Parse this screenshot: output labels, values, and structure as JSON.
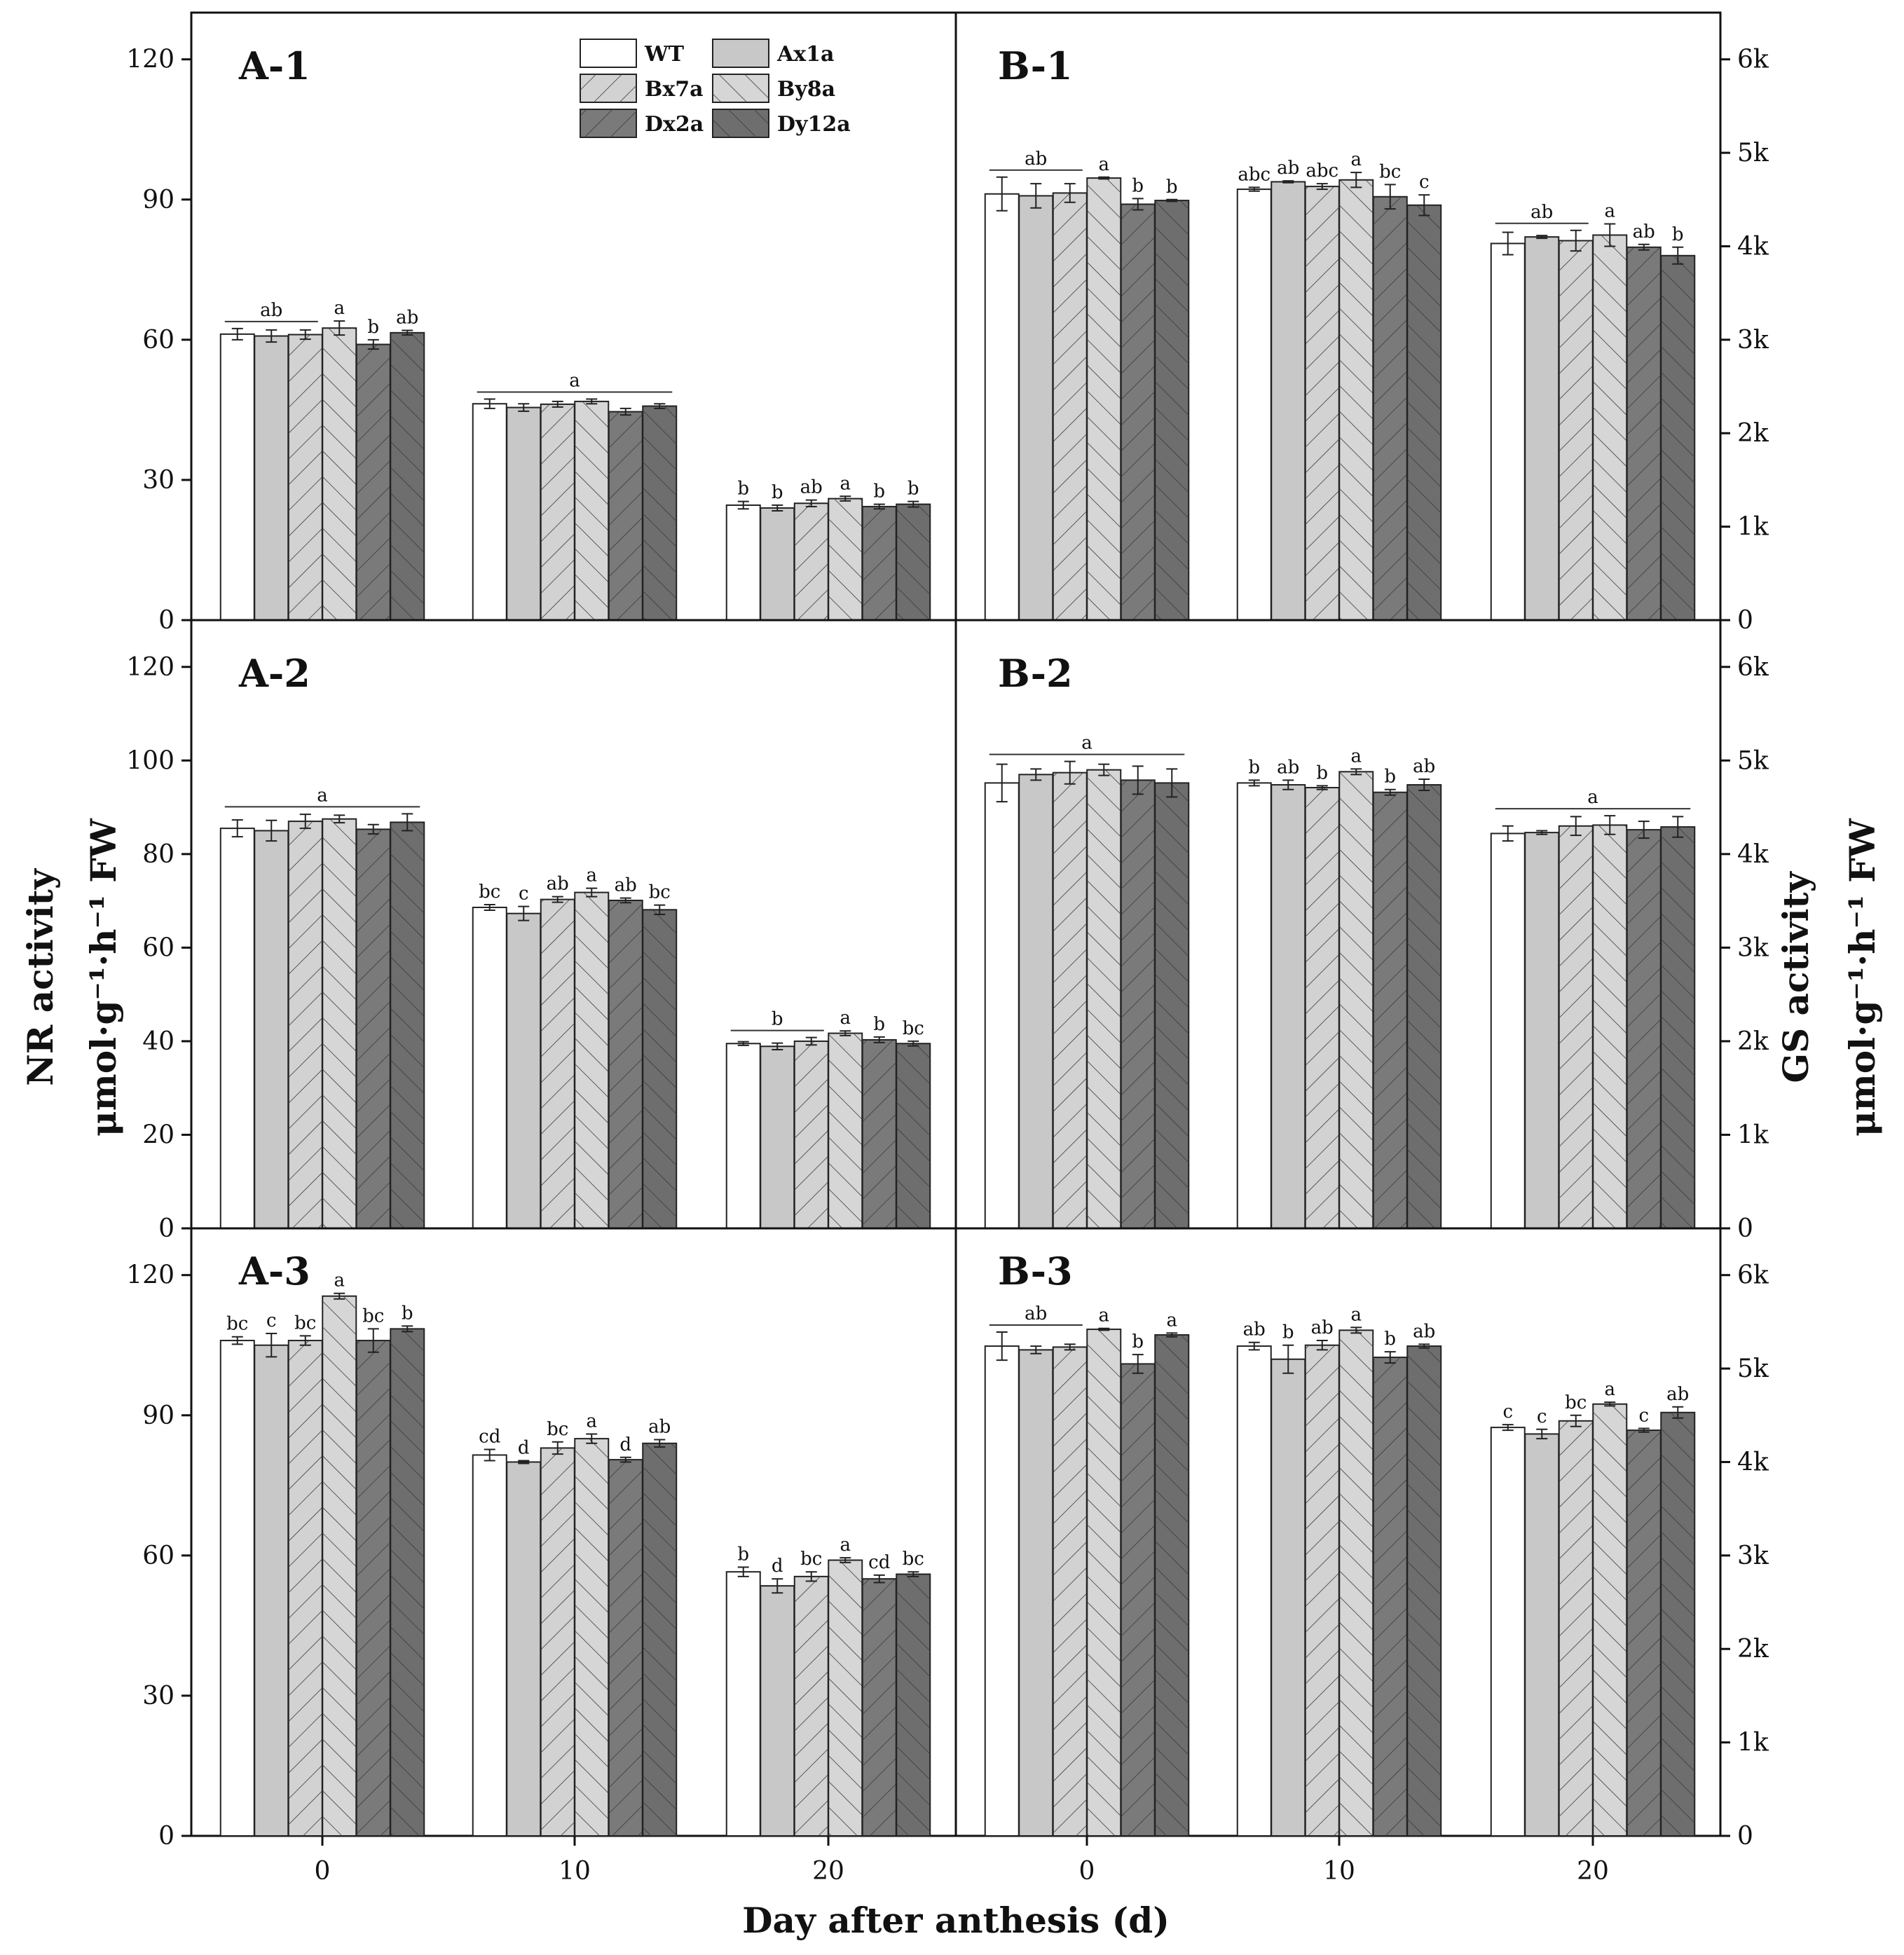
{
  "figure": {
    "x_axis_title": "Day after anthesis (d)",
    "left_axis_title_line1": "NR activity",
    "left_axis_title_line2": "μmol·g⁻¹·h⁻¹ FW",
    "right_axis_title_line1": "GS activity",
    "right_axis_title_line2": "μmol·g⁻¹·h⁻¹ FW"
  },
  "legend": {
    "placement": "top of panel A-1",
    "entries": [
      {
        "name": "WT",
        "fill": "#ffffff",
        "hatch": "none"
      },
      {
        "name": "Ax1a",
        "fill": "#c8c8c8",
        "hatch": "none"
      },
      {
        "name": "Bx7a",
        "fill": "#d2d2d2",
        "hatch": "forward"
      },
      {
        "name": "By8a",
        "fill": "#d6d6d6",
        "hatch": "back"
      },
      {
        "name": "Dx2a",
        "fill": "#7a7a7a",
        "hatch": "forward"
      },
      {
        "name": "Dy12a",
        "fill": "#6e6e6e",
        "hatch": "back"
      }
    ]
  },
  "chart_data": [
    {
      "type": "bar",
      "label": "A-1",
      "categories": [
        "0",
        "10",
        "20"
      ],
      "ylim": [
        0,
        130
      ],
      "yticks": [
        0,
        30,
        60,
        90,
        120
      ],
      "series": [
        {
          "name": "WT",
          "values": [
            61.2,
            46.3,
            24.6
          ],
          "errors": [
            1.2,
            1.0,
            0.8
          ]
        },
        {
          "name": "Ax1a",
          "values": [
            60.8,
            45.5,
            24.0
          ],
          "errors": [
            1.3,
            0.8,
            0.6
          ]
        },
        {
          "name": "Bx7a",
          "values": [
            61.1,
            46.2,
            25.0
          ],
          "errors": [
            1.0,
            0.6,
            0.7
          ]
        },
        {
          "name": "By8a",
          "values": [
            62.5,
            46.8,
            26.0
          ],
          "errors": [
            1.5,
            0.5,
            0.5
          ]
        },
        {
          "name": "Dx2a",
          "values": [
            59.0,
            44.6,
            24.3
          ],
          "errors": [
            1.0,
            0.7,
            0.5
          ]
        },
        {
          "name": "Dy12a",
          "values": [
            61.5,
            45.8,
            24.8
          ],
          "errors": [
            0.5,
            0.5,
            0.6
          ]
        }
      ],
      "letters": [
        [
          "",
          "",
          "",
          "a",
          "b",
          "ab"
        ],
        [
          "",
          "",
          "",
          "",
          "",
          ""
        ],
        [
          "b",
          "b",
          "ab",
          "a",
          "b",
          "b"
        ]
      ],
      "group_letters": [
        {
          "cat": 0,
          "from": 0,
          "to": 2,
          "text": "ab"
        },
        {
          "cat": 1,
          "from": 0,
          "to": 5,
          "text": "a"
        }
      ]
    },
    {
      "type": "bar",
      "label": "A-2",
      "categories": [
        "0",
        "10",
        "20"
      ],
      "ylim": [
        0,
        130
      ],
      "yticks": [
        0,
        20,
        40,
        60,
        80,
        100,
        120
      ],
      "series": [
        {
          "name": "WT",
          "values": [
            85.5,
            68.6,
            39.5
          ],
          "errors": [
            1.8,
            0.6,
            0.4
          ]
        },
        {
          "name": "Ax1a",
          "values": [
            85.0,
            67.3,
            38.9
          ],
          "errors": [
            2.2,
            1.5,
            0.7
          ]
        },
        {
          "name": "Bx7a",
          "values": [
            87.0,
            70.3,
            40.0
          ],
          "errors": [
            1.5,
            0.6,
            0.8
          ]
        },
        {
          "name": "By8a",
          "values": [
            87.5,
            71.8,
            41.7
          ],
          "errors": [
            0.8,
            0.9,
            0.5
          ]
        },
        {
          "name": "Dx2a",
          "values": [
            85.3,
            70.1,
            40.3
          ],
          "errors": [
            1.0,
            0.5,
            0.6
          ]
        },
        {
          "name": "Dy12a",
          "values": [
            86.8,
            68.1,
            39.5
          ],
          "errors": [
            1.8,
            1.0,
            0.5
          ]
        }
      ],
      "letters": [
        [
          "",
          "",
          "",
          "",
          "",
          ""
        ],
        [
          "bc",
          "c",
          "ab",
          "a",
          "ab",
          "bc"
        ],
        [
          "",
          "",
          "",
          "a",
          "b",
          "bc"
        ]
      ],
      "group_letters": [
        {
          "cat": 0,
          "from": 0,
          "to": 5,
          "text": "a"
        },
        {
          "cat": 2,
          "from": 0,
          "to": 2,
          "text": "b"
        }
      ]
    },
    {
      "type": "bar",
      "label": "A-3",
      "categories": [
        "0",
        "10",
        "20"
      ],
      "ylim": [
        0,
        130
      ],
      "yticks": [
        0,
        30,
        60,
        90,
        120
      ],
      "series": [
        {
          "name": "WT",
          "values": [
            106.0,
            81.5,
            56.5
          ],
          "errors": [
            0.8,
            1.2,
            1.0
          ]
        },
        {
          "name": "Ax1a",
          "values": [
            105.0,
            80.0,
            53.5
          ],
          "errors": [
            2.5,
            0.3,
            1.5
          ]
        },
        {
          "name": "Bx7a",
          "values": [
            106.0,
            83.0,
            55.5
          ],
          "errors": [
            1.0,
            1.3,
            1.0
          ]
        },
        {
          "name": "By8a",
          "values": [
            115.5,
            85.0,
            59.0
          ],
          "errors": [
            0.6,
            1.0,
            0.5
          ]
        },
        {
          "name": "Dx2a",
          "values": [
            106.0,
            80.5,
            55.0
          ],
          "errors": [
            2.5,
            0.5,
            0.8
          ]
        },
        {
          "name": "Dy12a",
          "values": [
            108.5,
            84.0,
            56.0
          ],
          "errors": [
            0.6,
            0.8,
            0.5
          ]
        }
      ],
      "letters": [
        [
          "bc",
          "c",
          "bc",
          "a",
          "bc",
          "b"
        ],
        [
          "cd",
          "d",
          "bc",
          "a",
          "d",
          "ab"
        ],
        [
          "b",
          "d",
          "bc",
          "a",
          "cd",
          "bc"
        ]
      ],
      "group_letters": []
    },
    {
      "type": "bar",
      "label": "B-1",
      "categories": [
        "0",
        "10",
        "20"
      ],
      "ylim": [
        0,
        6500
      ],
      "yticks": [
        0,
        1000,
        2000,
        3000,
        4000,
        5000,
        6000
      ],
      "ytick_labels": [
        "0",
        "1k",
        "2k",
        "3k",
        "4k",
        "5k",
        "6k"
      ],
      "series": [
        {
          "name": "WT",
          "values": [
            4560,
            4610,
            4030
          ],
          "errors": [
            180,
            20,
            120
          ]
        },
        {
          "name": "Ax1a",
          "values": [
            4540,
            4690,
            4100
          ],
          "errors": [
            130,
            10,
            15
          ]
        },
        {
          "name": "Bx7a",
          "values": [
            4570,
            4640,
            4060
          ],
          "errors": [
            100,
            30,
            110
          ]
        },
        {
          "name": "By8a",
          "values": [
            4730,
            4710,
            4120
          ],
          "errors": [
            10,
            80,
            120
          ]
        },
        {
          "name": "Dx2a",
          "values": [
            4450,
            4530,
            3990
          ],
          "errors": [
            60,
            130,
            30
          ]
        },
        {
          "name": "Dy12a",
          "values": [
            4490,
            4440,
            3900
          ],
          "errors": [
            10,
            110,
            90
          ]
        }
      ],
      "letters": [
        [
          "",
          "",
          "",
          "a",
          "b",
          "b"
        ],
        [
          "abc",
          "ab",
          "abc",
          "a",
          "bc",
          "c"
        ],
        [
          "",
          "",
          "",
          "a",
          "ab",
          "b"
        ]
      ],
      "group_letters": [
        {
          "cat": 0,
          "from": 0,
          "to": 2,
          "text": "ab"
        },
        {
          "cat": 2,
          "from": 0,
          "to": 2,
          "text": "ab"
        }
      ]
    },
    {
      "type": "bar",
      "label": "B-2",
      "categories": [
        "0",
        "10",
        "20"
      ],
      "ylim": [
        0,
        6500
      ],
      "yticks": [
        0,
        1000,
        2000,
        3000,
        4000,
        5000,
        6000
      ],
      "ytick_labels": [
        "0",
        "1k",
        "2k",
        "3k",
        "4k",
        "5k",
        "6k"
      ],
      "series": [
        {
          "name": "WT",
          "values": [
            4760,
            4760,
            4220
          ],
          "errors": [
            200,
            30,
            80
          ]
        },
        {
          "name": "Ax1a",
          "values": [
            4850,
            4740,
            4230
          ],
          "errors": [
            60,
            50,
            20
          ]
        },
        {
          "name": "Bx7a",
          "values": [
            4870,
            4710,
            4300
          ],
          "errors": [
            120,
            20,
            100
          ]
        },
        {
          "name": "By8a",
          "values": [
            4900,
            4880,
            4310
          ],
          "errors": [
            60,
            30,
            100
          ]
        },
        {
          "name": "Dx2a",
          "values": [
            4790,
            4660,
            4260
          ],
          "errors": [
            150,
            30,
            90
          ]
        },
        {
          "name": "Dy12a",
          "values": [
            4760,
            4740,
            4290
          ],
          "errors": [
            150,
            60,
            110
          ]
        }
      ],
      "letters": [
        [
          "",
          "",
          "",
          "",
          "",
          ""
        ],
        [
          "b",
          "ab",
          "b",
          "a",
          "b",
          "ab"
        ],
        [
          "",
          "",
          "",
          "",
          "",
          ""
        ]
      ],
      "group_letters": [
        {
          "cat": 0,
          "from": 0,
          "to": 5,
          "text": "a"
        },
        {
          "cat": 2,
          "from": 0,
          "to": 5,
          "text": "a"
        }
      ]
    },
    {
      "type": "bar",
      "label": "B-3",
      "categories": [
        "0",
        "10",
        "20"
      ],
      "ylim": [
        0,
        6500
      ],
      "yticks": [
        0,
        1000,
        2000,
        3000,
        4000,
        5000,
        6000
      ],
      "ytick_labels": [
        "0",
        "1k",
        "2k",
        "3k",
        "4k",
        "5k",
        "6k"
      ],
      "series": [
        {
          "name": "WT",
          "values": [
            5240,
            5240,
            4370
          ],
          "errors": [
            150,
            40,
            30
          ]
        },
        {
          "name": "Ax1a",
          "values": [
            5200,
            5100,
            4300
          ],
          "errors": [
            40,
            150,
            50
          ]
        },
        {
          "name": "Bx7a",
          "values": [
            5230,
            5250,
            4440
          ],
          "errors": [
            30,
            50,
            60
          ]
        },
        {
          "name": "By8a",
          "values": [
            5420,
            5410,
            4620
          ],
          "errors": [
            10,
            30,
            20
          ]
        },
        {
          "name": "Dx2a",
          "values": [
            5050,
            5120,
            4340
          ],
          "errors": [
            100,
            60,
            20
          ]
        },
        {
          "name": "Dy12a",
          "values": [
            5360,
            5240,
            4530
          ],
          "errors": [
            20,
            20,
            60
          ]
        }
      ],
      "letters": [
        [
          "",
          "",
          "",
          "a",
          "b",
          "a"
        ],
        [
          "ab",
          "b",
          "ab",
          "a",
          "b",
          "ab"
        ],
        [
          "c",
          "c",
          "bc",
          "a",
          "c",
          "ab"
        ]
      ],
      "group_letters": [
        {
          "cat": 0,
          "from": 0,
          "to": 2,
          "text": "ab"
        }
      ]
    }
  ]
}
